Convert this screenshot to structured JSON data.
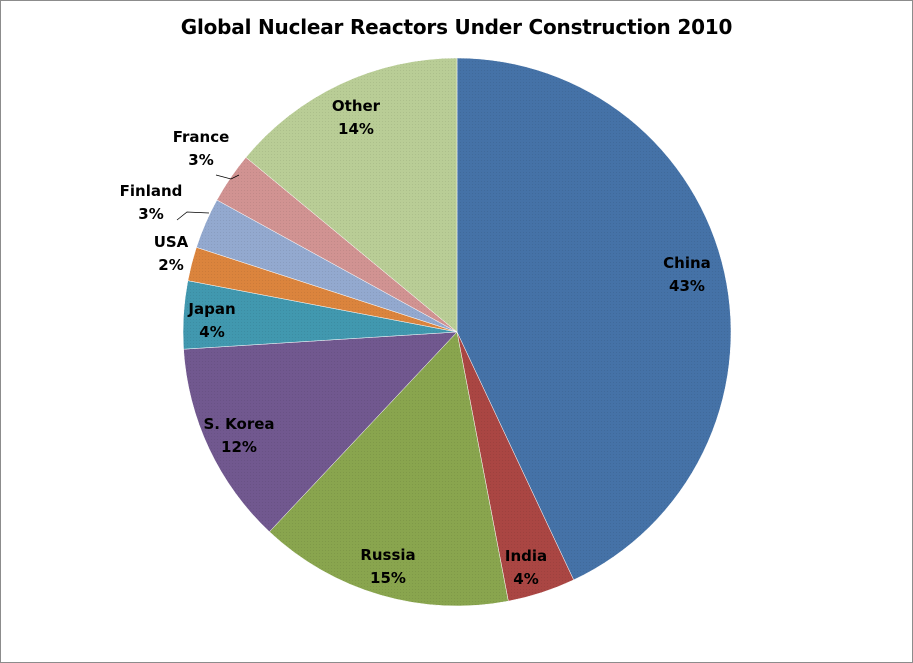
{
  "chart_data": {
    "type": "pie",
    "title": "Global Nuclear Reactors Under Construction 2010",
    "slices": [
      {
        "name": "China",
        "value": 43,
        "label": "43%",
        "color": "#4572A7"
      },
      {
        "name": "India",
        "value": 4,
        "label": "4%",
        "color": "#AA4643"
      },
      {
        "name": "Russia",
        "value": 15,
        "label": "15%",
        "color": "#89A54E"
      },
      {
        "name": "S. Korea",
        "value": 12,
        "label": "12%",
        "color": "#71588F"
      },
      {
        "name": "Japan",
        "value": 4,
        "label": "4%",
        "color": "#4198AF"
      },
      {
        "name": "USA",
        "value": 2,
        "label": "2%",
        "color": "#DB843D"
      },
      {
        "name": "Finland",
        "value": 3,
        "label": "3%",
        "color": "#93A9CF"
      },
      {
        "name": "France",
        "value": 3,
        "label": "3%",
        "color": "#D19392"
      },
      {
        "name": "Other",
        "value": 14,
        "label": "14%",
        "color": "#B9CD96"
      }
    ],
    "start_direction": "top",
    "direction": "clockwise",
    "legend": "none",
    "data_labels": "category name and percentage"
  }
}
